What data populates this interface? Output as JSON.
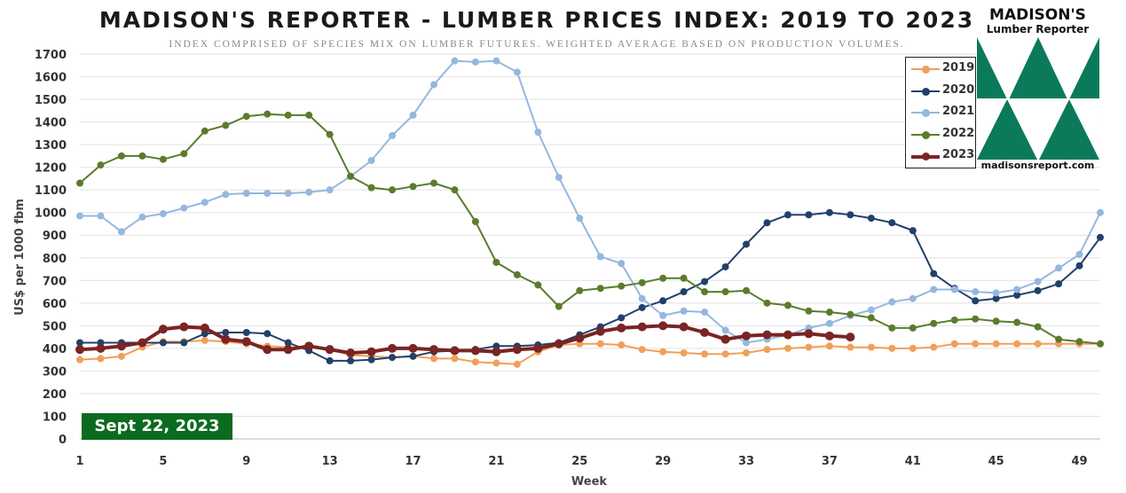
{
  "title": "MADISON'S REPORTER - LUMBER PRICES INDEX: 2019 TO 2023",
  "subtitle": "INDEX COMPRISED OF SPECIES MIX ON LUMBER FUTURES. WEIGHTED AVERAGE BASED ON PRODUCTION VOLUMES.",
  "date_badge": "Sept 22, 2023",
  "logo": {
    "name": "MADISON'S",
    "sub": "Lumber Reporter",
    "url": "madisonsreport.com",
    "color": "#0a7a5a"
  },
  "chart_data": {
    "type": "line",
    "title": "MADISON'S REPORTER - LUMBER PRICES INDEX: 2019 TO 2023",
    "xlabel": "Week",
    "ylabel": "US$ per 1000 fbm",
    "xlim": [
      1,
      50
    ],
    "ylim": [
      0,
      1700
    ],
    "xticks": [
      1,
      5,
      9,
      13,
      17,
      21,
      25,
      29,
      33,
      37,
      41,
      45,
      49
    ],
    "yticks": [
      0,
      100,
      200,
      300,
      400,
      500,
      600,
      700,
      800,
      900,
      1000,
      1100,
      1200,
      1300,
      1400,
      1500,
      1600,
      1700
    ],
    "grid": "horizontal",
    "legend_position": "top-right",
    "series": [
      {
        "name": "2019",
        "color": "#f0a05a",
        "width": 2,
        "x": [
          1,
          2,
          3,
          4,
          5,
          6,
          7,
          8,
          9,
          10,
          11,
          12,
          13,
          14,
          15,
          16,
          17,
          18,
          19,
          20,
          21,
          22,
          23,
          24,
          25,
          26,
          27,
          28,
          29,
          30,
          31,
          32,
          33,
          34,
          35,
          36,
          37,
          38,
          39,
          40,
          41,
          42,
          43,
          44,
          45,
          46,
          47,
          48,
          49,
          50
        ],
        "values": [
          350,
          355,
          365,
          405,
          430,
          430,
          435,
          430,
          420,
          410,
          405,
          405,
          395,
          370,
          365,
          360,
          365,
          355,
          355,
          340,
          335,
          330,
          385,
          415,
          420,
          420,
          415,
          395,
          385,
          380,
          375,
          375,
          380,
          395,
          400,
          405,
          410,
          405,
          405,
          400,
          400,
          405,
          420,
          420,
          420,
          420,
          420,
          420,
          420,
          420
        ]
      },
      {
        "name": "2020",
        "color": "#21406a",
        "width": 2,
        "x": [
          1,
          2,
          3,
          4,
          5,
          6,
          7,
          8,
          9,
          10,
          11,
          12,
          13,
          14,
          15,
          16,
          17,
          18,
          19,
          20,
          21,
          22,
          23,
          24,
          25,
          26,
          27,
          28,
          29,
          30,
          31,
          32,
          33,
          34,
          35,
          36,
          37,
          38,
          39,
          40,
          41,
          42,
          43,
          44,
          45,
          46,
          47,
          48,
          49,
          50
        ],
        "values": [
          425,
          425,
          425,
          425,
          425,
          425,
          465,
          470,
          470,
          465,
          425,
          390,
          345,
          345,
          350,
          360,
          365,
          385,
          390,
          395,
          410,
          410,
          415,
          425,
          460,
          495,
          535,
          580,
          610,
          650,
          695,
          760,
          860,
          955,
          990,
          990,
          1000,
          990,
          975,
          955,
          920,
          730,
          665,
          610,
          620,
          635,
          655,
          685,
          765,
          890
        ]
      },
      {
        "name": "2021",
        "color": "#94b8de",
        "width": 2,
        "x": [
          1,
          2,
          3,
          4,
          5,
          6,
          7,
          8,
          9,
          10,
          11,
          12,
          13,
          14,
          15,
          16,
          17,
          18,
          19,
          20,
          21,
          22,
          23,
          24,
          25,
          26,
          27,
          28,
          29,
          30,
          31,
          32,
          33,
          34,
          35,
          36,
          37,
          38,
          39,
          40,
          41,
          42,
          43,
          44,
          45,
          46,
          47,
          48,
          49,
          50
        ],
        "values": [
          985,
          985,
          915,
          980,
          995,
          1020,
          1045,
          1080,
          1085,
          1085,
          1085,
          1090,
          1100,
          1160,
          1230,
          1340,
          1430,
          1565,
          1670,
          1665,
          1670,
          1620,
          1355,
          1155,
          975,
          805,
          775,
          620,
          545,
          565,
          560,
          480,
          425,
          440,
          460,
          490,
          510,
          545,
          570,
          605,
          620,
          660,
          660,
          650,
          645,
          660,
          695,
          755,
          815,
          1000
        ]
      },
      {
        "name": "2022",
        "color": "#5a7c2c",
        "width": 2,
        "x": [
          1,
          2,
          3,
          4,
          5,
          6,
          7,
          8,
          9,
          10,
          11,
          12,
          13,
          14,
          15,
          16,
          17,
          18,
          19,
          20,
          21,
          22,
          23,
          24,
          25,
          26,
          27,
          28,
          29,
          30,
          31,
          32,
          33,
          34,
          35,
          36,
          37,
          38,
          39,
          40,
          41,
          42,
          43,
          44,
          45,
          46,
          47,
          48,
          49,
          50
        ],
        "values": [
          1130,
          1210,
          1250,
          1250,
          1235,
          1260,
          1360,
          1385,
          1425,
          1435,
          1430,
          1430,
          1345,
          1160,
          1110,
          1100,
          1115,
          1130,
          1100,
          960,
          780,
          725,
          680,
          585,
          655,
          665,
          675,
          690,
          710,
          710,
          650,
          650,
          655,
          600,
          590,
          565,
          560,
          550,
          535,
          490,
          490,
          510,
          525,
          530,
          520,
          515,
          495,
          440,
          430,
          420
        ]
      },
      {
        "name": "2023",
        "color": "#7a2424",
        "width": 4,
        "x": [
          1,
          2,
          3,
          4,
          5,
          6,
          7,
          8,
          9,
          10,
          11,
          12,
          13,
          14,
          15,
          16,
          17,
          18,
          19,
          20,
          21,
          22,
          23,
          24,
          25,
          26,
          27,
          28,
          29,
          30,
          31,
          32,
          33,
          34,
          35,
          36,
          37,
          38
        ],
        "values": [
          395,
          400,
          410,
          425,
          485,
          495,
          490,
          440,
          430,
          395,
          395,
          410,
          395,
          380,
          385,
          400,
          400,
          395,
          390,
          390,
          385,
          395,
          400,
          420,
          445,
          475,
          490,
          495,
          500,
          495,
          470,
          440,
          455,
          460,
          460,
          465,
          455,
          450
        ]
      }
    ]
  }
}
